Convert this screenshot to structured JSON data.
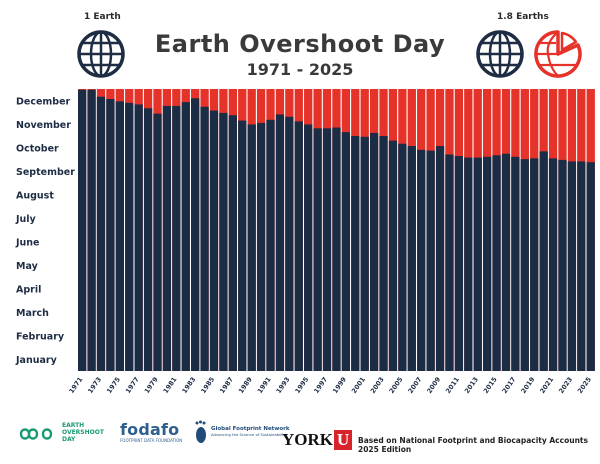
{
  "header": {
    "title": "Earth Overshoot Day",
    "subtitle": "1971 - 2025",
    "left_label": "1 Earth",
    "right_label": "1.8 Earths"
  },
  "colors": {
    "bar_fill": "#1b2d45",
    "overshoot": "#e6332a",
    "globe_line": "#1e2d44",
    "globe_red": "#e6332a"
  },
  "chart_data": {
    "type": "bar",
    "title": "Earth Overshoot Day",
    "subtitle": "1971 - 2025",
    "xlabel": "",
    "ylabel": "",
    "y_categories": [
      "January",
      "February",
      "March",
      "April",
      "May",
      "June",
      "July",
      "August",
      "September",
      "October",
      "November",
      "December"
    ],
    "x_tick_labels": [
      "1971",
      "1973",
      "1975",
      "1977",
      "1979",
      "1981",
      "1983",
      "1985",
      "1987",
      "1989",
      "1991",
      "1993",
      "1995",
      "1997",
      "1999",
      "2001",
      "2003",
      "2005",
      "2007",
      "2009",
      "2011",
      "2013",
      "2015",
      "2017",
      "2019",
      "2021",
      "2023",
      "2025"
    ],
    "x": [
      1971,
      1972,
      1973,
      1974,
      1975,
      1976,
      1977,
      1978,
      1979,
      1980,
      1981,
      1982,
      1983,
      1984,
      1985,
      1986,
      1987,
      1988,
      1989,
      1990,
      1991,
      1992,
      1993,
      1994,
      1995,
      1996,
      1997,
      1998,
      1999,
      2000,
      2001,
      2002,
      2003,
      2004,
      2005,
      2006,
      2007,
      2008,
      2009,
      2010,
      2011,
      2012,
      2013,
      2014,
      2015,
      2016,
      2017,
      2018,
      2019,
      2020,
      2021,
      2022,
      2023,
      2024,
      2025
    ],
    "values_day_of_year": [
      365,
      365,
      356,
      353,
      350,
      348,
      346,
      341,
      334,
      344,
      344,
      349,
      354,
      343,
      338,
      335,
      332,
      325,
      320,
      322,
      326,
      333,
      330,
      324,
      320,
      315,
      315,
      316,
      310,
      305,
      304,
      309,
      305,
      299,
      295,
      292,
      287,
      286,
      292,
      281,
      279,
      277,
      277,
      278,
      280,
      282,
      278,
      275,
      276,
      285,
      276,
      274,
      272,
      272,
      271
    ],
    "ylim": [
      0,
      366
    ],
    "grid": false,
    "legend": "none"
  },
  "footer": {
    "eod_logo_line1": "EARTH",
    "eod_logo_line2": "OVERSHOOT",
    "eod_logo_line3": "DAY",
    "fodafo_name": "fodafo",
    "fodafo_sub": "FOOTPRINT DATA FOUNDATION",
    "gfn_name": "Global Footprint Network",
    "gfn_sub": "Advancing the Science of Sustainability",
    "york_text": "YORK",
    "york_box": "U",
    "source": "Based on National Footprint and Biocapacity Accounts 2025 Edition"
  }
}
